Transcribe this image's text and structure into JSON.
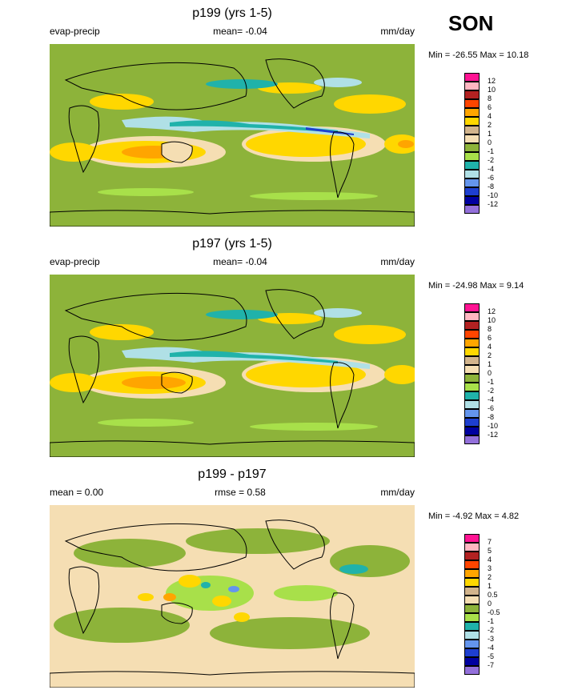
{
  "season": "SON",
  "panels": [
    {
      "id": "p199",
      "title": "p199 (yrs 1-5)",
      "left_label": "evap-precip",
      "center_label": "mean=  -0.04",
      "right_label": "mm/day",
      "minmax": "Min = -26.55 Max =  10.18",
      "colorbar": {
        "labels": [
          "12",
          "10",
          "8",
          "6",
          "4",
          "2",
          "1",
          "0",
          "-1",
          "-2",
          "-4",
          "-6",
          "-8",
          "-10",
          "-12"
        ],
        "colors": [
          "#ff1493",
          "#ffb6c1",
          "#b22222",
          "#ff4500",
          "#ffa500",
          "#ffd700",
          "#d2b48c",
          "#f5deb3",
          "#8db33a",
          "#a8e04a",
          "#20b2aa",
          "#b0e0e6",
          "#6495ed",
          "#1e3fd0",
          "#0000a0",
          "#9370db"
        ]
      }
    },
    {
      "id": "p197",
      "title": "p197 (yrs 1-5)",
      "left_label": "evap-precip",
      "center_label": "mean=  -0.04",
      "right_label": "mm/day",
      "minmax": "Min = -24.98 Max =   9.14",
      "colorbar": {
        "labels": [
          "12",
          "10",
          "8",
          "6",
          "4",
          "2",
          "1",
          "0",
          "-1",
          "-2",
          "-4",
          "-6",
          "-8",
          "-10",
          "-12"
        ],
        "colors": [
          "#ff1493",
          "#ffb6c1",
          "#b22222",
          "#ff4500",
          "#ffa500",
          "#ffd700",
          "#d2b48c",
          "#f5deb3",
          "#8db33a",
          "#a8e04a",
          "#20b2aa",
          "#b0e0e6",
          "#6495ed",
          "#1e3fd0",
          "#0000a0",
          "#9370db"
        ]
      }
    },
    {
      "id": "diff",
      "title": "p199 - p197",
      "left_label": "mean =   0.00",
      "center_label": "rmse =   0.58",
      "right_label": "mm/day",
      "minmax": "Min =  -4.92 Max =   4.82",
      "colorbar": {
        "labels": [
          "7",
          "5",
          "4",
          "3",
          "2",
          "1",
          "0.5",
          "0",
          "-0.5",
          "-1",
          "-2",
          "-3",
          "-4",
          "-5",
          "-7"
        ],
        "colors": [
          "#ff1493",
          "#ffb6c1",
          "#b22222",
          "#ff4500",
          "#ffa500",
          "#ffd700",
          "#d2b48c",
          "#f5deb3",
          "#8db33a",
          "#a8e04a",
          "#20b2aa",
          "#b0e0e6",
          "#6495ed",
          "#1e3fd0",
          "#0000a0",
          "#9370db"
        ]
      }
    }
  ]
}
